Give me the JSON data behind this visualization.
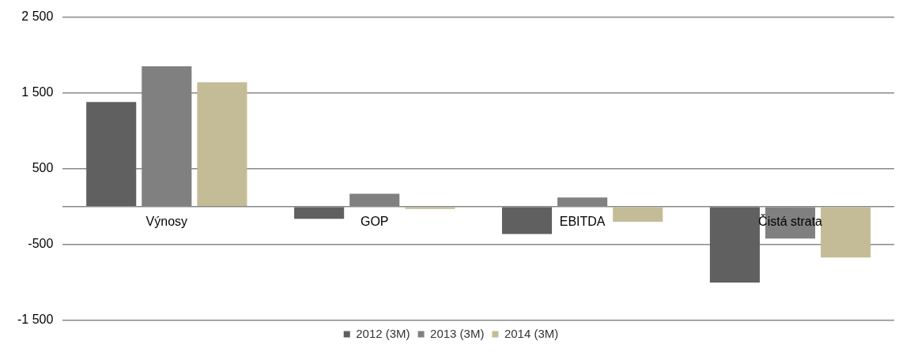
{
  "chart_data": {
    "type": "bar",
    "categories": [
      "Výnosy",
      "GOP",
      "EBITDA",
      "Čistá strata"
    ],
    "series": [
      {
        "name": "2012 (3M)",
        "color": "#606060",
        "values": [
          1380,
          -160,
          -360,
          -1000
        ]
      },
      {
        "name": "2013 (3M)",
        "color": "#808080",
        "values": [
          1850,
          170,
          120,
          -420
        ]
      },
      {
        "name": "2014 (3M)",
        "color": "#c4bc96",
        "values": [
          1640,
          -30,
          -200,
          -670
        ]
      }
    ],
    "ylim": [
      -1500,
      2500
    ],
    "yticks": [
      {
        "value": -1500,
        "label": "-1 500"
      },
      {
        "value": -500,
        "label": "-500"
      },
      {
        "value": 0,
        "label": null
      },
      {
        "value": 500,
        "label": "500"
      },
      {
        "value": 1500,
        "label": "1 500"
      },
      {
        "value": 2500,
        "label": "2 500"
      }
    ],
    "grid": "y",
    "legend": "bottom"
  }
}
